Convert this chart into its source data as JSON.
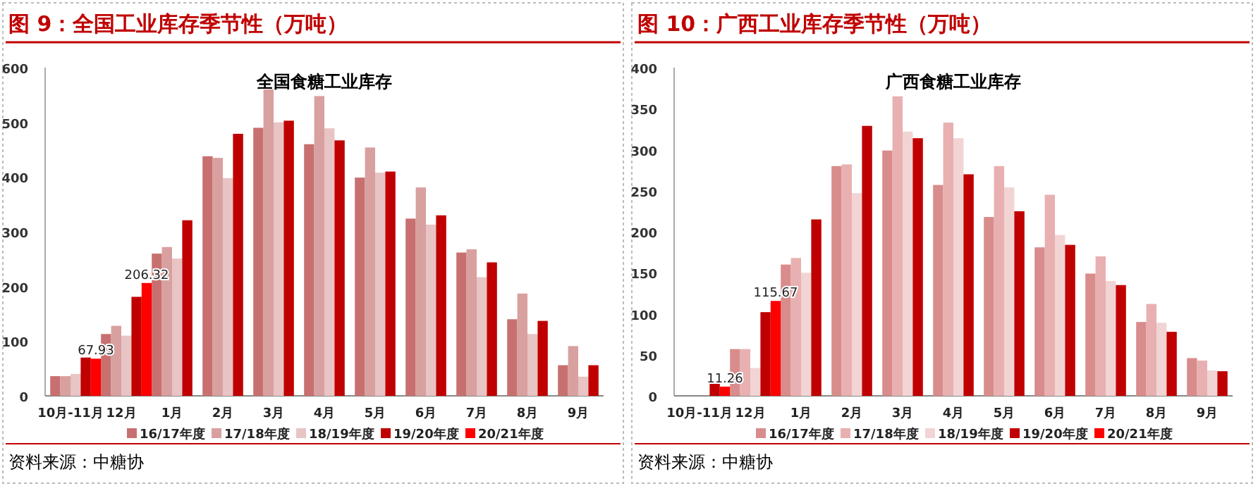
{
  "chart_data": [
    {
      "type": "bar",
      "title": "图 9：全国工业库存季节性（万吨）",
      "subtitle": "全国食糖工业库存",
      "categories": [
        "10月-11月",
        "12月",
        "1月",
        "2月",
        "3月",
        "4月",
        "5月",
        "6月",
        "7月",
        "8月",
        "9月"
      ],
      "ylim": [
        0,
        600
      ],
      "yticks": [
        0,
        100,
        200,
        300,
        400,
        500,
        600
      ],
      "grid": false,
      "legend": "bottom",
      "annotations": [
        "资料来源：中糖协"
      ],
      "series": [
        {
          "name": "16/17年度",
          "color": "#c87070",
          "values": [
            36,
            113,
            260,
            438,
            490,
            460,
            399,
            324,
            262,
            140,
            56
          ]
        },
        {
          "name": "17/18年度",
          "color": "#d9a0a0",
          "values": [
            36,
            128,
            272,
            435,
            560,
            548,
            454,
            381,
            268,
            187,
            91
          ]
        },
        {
          "name": "18/19年度",
          "color": "#e8c4c4",
          "values": [
            40,
            110,
            251,
            398,
            500,
            489,
            408,
            313,
            217,
            113,
            35
          ]
        },
        {
          "name": "19/20年度",
          "color": "#c00000",
          "values": [
            70,
            181,
            321,
            479,
            503,
            467,
            410,
            330,
            244,
            137,
            56
          ]
        },
        {
          "name": "20/21年度",
          "color": "#ff0000",
          "values": [
            67.93,
            206.32,
            null,
            null,
            null,
            null,
            null,
            null,
            null,
            null,
            null
          ],
          "value_labels": [
            "67.93",
            "206.32",
            null,
            null,
            null,
            null,
            null,
            null,
            null,
            null,
            null
          ]
        }
      ]
    },
    {
      "type": "bar",
      "title": "图 10：广西工业库存季节性（万吨）",
      "subtitle": "广西食糖工业库存",
      "categories": [
        "10月-11月",
        "12月",
        "1月",
        "2月",
        "3月",
        "4月",
        "5月",
        "6月",
        "7月",
        "8月",
        "9月"
      ],
      "ylim": [
        0,
        400
      ],
      "yticks": [
        0,
        50,
        100,
        150,
        200,
        250,
        300,
        350,
        400
      ],
      "grid": false,
      "legend": "bottom",
      "annotations": [
        "资料来源：中糖协"
      ],
      "series": [
        {
          "name": "16/17年度",
          "color": "#d98c8c",
          "values": [
            null,
            57,
            160,
            280,
            299,
            257,
            218,
            181,
            149,
            90,
            46
          ]
        },
        {
          "name": "17/18年度",
          "color": "#e8b0b0",
          "values": [
            null,
            57,
            168,
            282,
            365,
            333,
            280,
            245,
            170,
            112,
            43
          ]
        },
        {
          "name": "18/19年度",
          "color": "#f2d4d4",
          "values": [
            null,
            34,
            150,
            247,
            322,
            314,
            254,
            196,
            140,
            89,
            31
          ]
        },
        {
          "name": "19/20年度",
          "color": "#c00000",
          "values": [
            16,
            102,
            215,
            329,
            314,
            270,
            225,
            184,
            135,
            78,
            30
          ]
        },
        {
          "name": "20/21年度",
          "color": "#ff0000",
          "values": [
            11.26,
            115.67,
            null,
            null,
            null,
            null,
            null,
            null,
            null,
            null,
            null
          ],
          "value_labels": [
            "11.26",
            "115.67",
            null,
            null,
            null,
            null,
            null,
            null,
            null,
            null,
            null
          ]
        }
      ]
    }
  ]
}
